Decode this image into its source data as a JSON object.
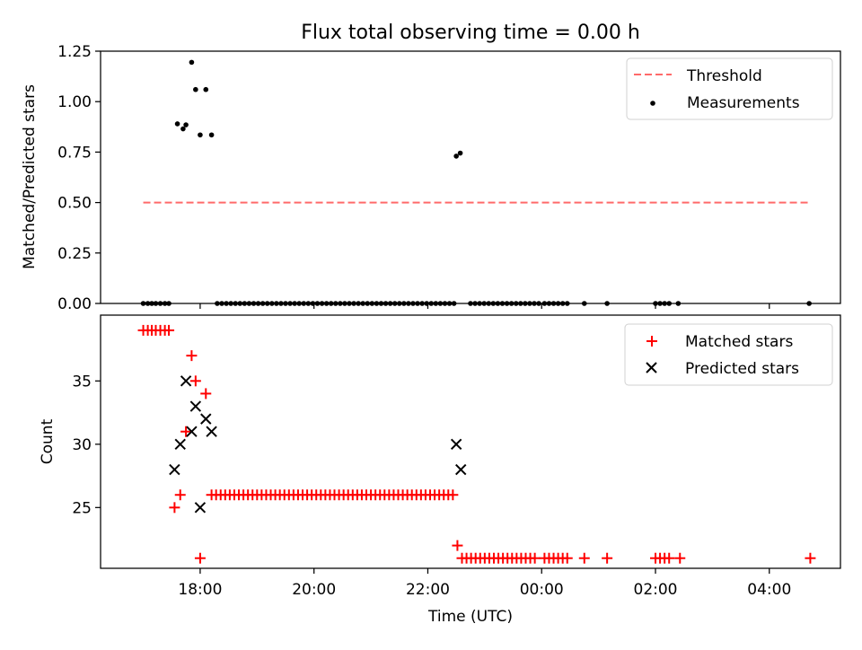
{
  "figure": {
    "title": "Flux total observing time = 0.00 h",
    "xlabel": "Time (UTC)"
  },
  "chart_data": [
    {
      "type": "scatter",
      "name": "upper",
      "ylabel": "Matched/Predicted stars",
      "ylim": [
        0,
        1.25
      ],
      "yticks": [
        0.0,
        0.25,
        0.5,
        0.75,
        1.0,
        1.25
      ],
      "ytick_labels": [
        "0.00",
        "0.25",
        "0.50",
        "0.75",
        "1.00",
        "1.25"
      ],
      "xlim_hours": [
        16.25,
        29.25
      ],
      "xticks_hours": [
        18,
        20,
        22,
        24,
        26,
        28
      ],
      "xtick_labels": [
        "18:00",
        "20:00",
        "22:00",
        "00:00",
        "02:00",
        "04:00"
      ],
      "legend": {
        "position": "top-right",
        "entries": [
          "Threshold",
          "Measurements"
        ]
      },
      "threshold": {
        "label": "Threshold",
        "value": 0.5,
        "x_range": [
          17.0,
          28.7
        ],
        "color": "#ff6a6a"
      },
      "measurements": {
        "label": "Measurements",
        "color": "#000000",
        "points": [
          [
            17.6,
            0.89
          ],
          [
            17.7,
            0.865
          ],
          [
            17.75,
            0.885
          ],
          [
            17.85,
            1.195
          ],
          [
            17.92,
            1.06
          ],
          [
            18.0,
            0.835
          ],
          [
            18.1,
            1.06
          ],
          [
            18.2,
            0.835
          ],
          [
            22.5,
            0.73
          ],
          [
            22.57,
            0.745
          ]
        ],
        "zero_x": [
          17.0,
          17.08,
          17.15,
          17.22,
          17.3,
          17.38,
          17.45,
          18.3,
          18.38,
          18.46,
          18.54,
          18.62,
          18.7,
          18.78,
          18.86,
          18.94,
          19.02,
          19.1,
          19.18,
          19.26,
          19.34,
          19.42,
          19.5,
          19.58,
          19.66,
          19.74,
          19.82,
          19.9,
          19.98,
          20.06,
          20.14,
          20.22,
          20.3,
          20.38,
          20.46,
          20.54,
          20.62,
          20.7,
          20.78,
          20.86,
          20.94,
          21.02,
          21.1,
          21.18,
          21.26,
          21.34,
          21.42,
          21.5,
          21.58,
          21.66,
          21.74,
          21.82,
          21.9,
          21.98,
          22.06,
          22.14,
          22.22,
          22.3,
          22.38,
          22.46,
          22.75,
          22.83,
          22.91,
          22.99,
          23.07,
          23.15,
          23.23,
          23.31,
          23.39,
          23.47,
          23.55,
          23.63,
          23.71,
          23.79,
          23.87,
          23.95,
          24.05,
          24.13,
          24.21,
          24.29,
          24.37,
          24.45,
          24.75,
          25.15,
          26.0,
          26.08,
          26.16,
          26.24,
          26.4,
          28.7
        ]
      }
    },
    {
      "type": "scatter",
      "name": "lower",
      "ylabel": "Count",
      "ylim": [
        20.2,
        40.2
      ],
      "yticks": [
        25,
        30,
        35
      ],
      "ytick_labels": [
        "25",
        "30",
        "35"
      ],
      "xlim_hours": [
        16.25,
        29.25
      ],
      "xticks_hours": [
        18,
        20,
        22,
        24,
        26,
        28
      ],
      "xtick_labels": [
        "18:00",
        "20:00",
        "22:00",
        "00:00",
        "02:00",
        "04:00"
      ],
      "legend": {
        "position": "top-right",
        "entries": [
          "Matched stars",
          "Predicted stars"
        ]
      },
      "series": [
        {
          "name": "Matched stars",
          "marker": "plus",
          "color": "#ff0000",
          "points": [
            [
              17.0,
              39
            ],
            [
              17.08,
              39
            ],
            [
              17.15,
              39
            ],
            [
              17.22,
              39
            ],
            [
              17.3,
              39
            ],
            [
              17.38,
              39
            ],
            [
              17.45,
              39
            ],
            [
              17.55,
              25
            ],
            [
              17.65,
              26
            ],
            [
              17.75,
              31
            ],
            [
              17.85,
              37
            ],
            [
              17.92,
              35
            ],
            [
              18.0,
              21
            ],
            [
              18.1,
              34
            ],
            [
              18.2,
              26
            ],
            [
              18.28,
              26
            ],
            [
              18.36,
              26
            ],
            [
              18.44,
              26
            ],
            [
              18.52,
              26
            ],
            [
              18.6,
              26
            ],
            [
              18.68,
              26
            ],
            [
              18.76,
              26
            ],
            [
              18.84,
              26
            ],
            [
              18.92,
              26
            ],
            [
              19.0,
              26
            ],
            [
              19.08,
              26
            ],
            [
              19.16,
              26
            ],
            [
              19.24,
              26
            ],
            [
              19.32,
              26
            ],
            [
              19.4,
              26
            ],
            [
              19.48,
              26
            ],
            [
              19.56,
              26
            ],
            [
              19.64,
              26
            ],
            [
              19.72,
              26
            ],
            [
              19.8,
              26
            ],
            [
              19.88,
              26
            ],
            [
              19.96,
              26
            ],
            [
              20.04,
              26
            ],
            [
              20.12,
              26
            ],
            [
              20.2,
              26
            ],
            [
              20.28,
              26
            ],
            [
              20.36,
              26
            ],
            [
              20.44,
              26
            ],
            [
              20.52,
              26
            ],
            [
              20.6,
              26
            ],
            [
              20.68,
              26
            ],
            [
              20.76,
              26
            ],
            [
              20.84,
              26
            ],
            [
              20.92,
              26
            ],
            [
              21.0,
              26
            ],
            [
              21.08,
              26
            ],
            [
              21.16,
              26
            ],
            [
              21.24,
              26
            ],
            [
              21.32,
              26
            ],
            [
              21.4,
              26
            ],
            [
              21.48,
              26
            ],
            [
              21.56,
              26
            ],
            [
              21.64,
              26
            ],
            [
              21.72,
              26
            ],
            [
              21.8,
              26
            ],
            [
              21.88,
              26
            ],
            [
              21.96,
              26
            ],
            [
              22.04,
              26
            ],
            [
              22.12,
              26
            ],
            [
              22.2,
              26
            ],
            [
              22.28,
              26
            ],
            [
              22.36,
              26
            ],
            [
              22.44,
              26
            ],
            [
              22.52,
              22
            ],
            [
              22.6,
              21
            ],
            [
              22.68,
              21
            ],
            [
              22.76,
              21
            ],
            [
              22.84,
              21
            ],
            [
              22.92,
              21
            ],
            [
              23.0,
              21
            ],
            [
              23.08,
              21
            ],
            [
              23.16,
              21
            ],
            [
              23.24,
              21
            ],
            [
              23.32,
              21
            ],
            [
              23.4,
              21
            ],
            [
              23.48,
              21
            ],
            [
              23.56,
              21
            ],
            [
              23.64,
              21
            ],
            [
              23.72,
              21
            ],
            [
              23.8,
              21
            ],
            [
              23.88,
              21
            ],
            [
              24.05,
              21
            ],
            [
              24.13,
              21
            ],
            [
              24.21,
              21
            ],
            [
              24.29,
              21
            ],
            [
              24.37,
              21
            ],
            [
              24.45,
              21
            ],
            [
              24.75,
              21
            ],
            [
              25.15,
              21
            ],
            [
              26.0,
              21
            ],
            [
              26.08,
              21
            ],
            [
              26.16,
              21
            ],
            [
              26.24,
              21
            ],
            [
              26.43,
              21
            ],
            [
              28.72,
              21
            ]
          ]
        },
        {
          "name": "Predicted stars",
          "marker": "x",
          "color": "#000000",
          "points": [
            [
              17.55,
              28
            ],
            [
              17.65,
              30
            ],
            [
              17.75,
              35
            ],
            [
              17.85,
              31
            ],
            [
              17.92,
              33
            ],
            [
              18.0,
              25
            ],
            [
              18.1,
              32
            ],
            [
              18.2,
              31
            ],
            [
              22.5,
              30
            ],
            [
              22.58,
              28
            ]
          ]
        }
      ]
    }
  ]
}
